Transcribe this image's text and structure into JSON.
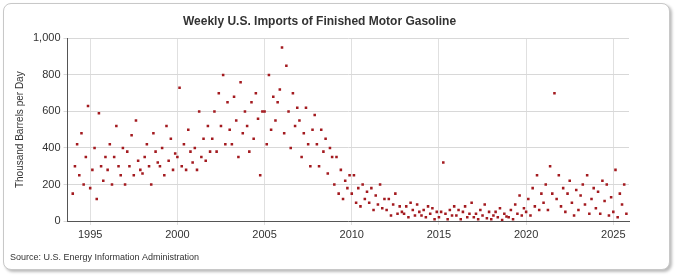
{
  "chart_data": {
    "type": "scatter",
    "title": "Weekly U.S. Imports of Finished Motor Gasoline",
    "y_label": "Thousand Barrels per Day",
    "source": "Source: U.S. Energy Information Administration",
    "color": "#a31a1f",
    "marker": "square",
    "grid": true,
    "xlim": [
      1993.7,
      2025.9
    ],
    "xticks": [
      1995,
      2000,
      2005,
      2010,
      2015,
      2020,
      2025
    ],
    "ylim": [
      0,
      1000
    ],
    "yticks": [
      0,
      200,
      400,
      600,
      800,
      {
        "value": 1000,
        "label": "1,000"
      }
    ],
    "x": [
      1994.0,
      1994.125,
      1994.25,
      1994.375,
      1994.5,
      1994.625,
      1994.75,
      1994.875,
      1995.0,
      1995.125,
      1995.25,
      1995.375,
      1995.5,
      1995.625,
      1995.75,
      1995.875,
      1996.0,
      1996.125,
      1996.25,
      1996.375,
      1996.5,
      1996.625,
      1996.75,
      1996.875,
      1997.0,
      1997.125,
      1997.25,
      1997.375,
      1997.5,
      1997.625,
      1997.75,
      1997.875,
      1998.0,
      1998.125,
      1998.25,
      1998.375,
      1998.5,
      1998.625,
      1998.75,
      1998.875,
      1999.0,
      1999.125,
      1999.25,
      1999.375,
      1999.5,
      1999.625,
      1999.75,
      1999.875,
      2000.0,
      2000.125,
      2000.25,
      2000.375,
      2000.5,
      2000.625,
      2000.75,
      2000.875,
      2001.0,
      2001.125,
      2001.25,
      2001.375,
      2001.5,
      2001.625,
      2001.75,
      2001.875,
      2002.0,
      2002.125,
      2002.25,
      2002.375,
      2002.5,
      2002.625,
      2002.75,
      2002.875,
      2003.0,
      2003.125,
      2003.25,
      2003.375,
      2003.5,
      2003.625,
      2003.75,
      2003.875,
      2004.0,
      2004.125,
      2004.25,
      2004.375,
      2004.5,
      2004.625,
      2004.75,
      2004.875,
      2005.0,
      2005.125,
      2005.25,
      2005.375,
      2005.5,
      2005.625,
      2005.75,
      2005.875,
      2006.0,
      2006.125,
      2006.25,
      2006.375,
      2006.5,
      2006.625,
      2006.75,
      2006.875,
      2007.0,
      2007.125,
      2007.25,
      2007.375,
      2007.5,
      2007.625,
      2007.75,
      2007.875,
      2008.0,
      2008.125,
      2008.25,
      2008.375,
      2008.5,
      2008.625,
      2008.75,
      2008.875,
      2009.0,
      2009.125,
      2009.25,
      2009.375,
      2009.5,
      2009.625,
      2009.75,
      2009.875,
      2010.0,
      2010.125,
      2010.25,
      2010.375,
      2010.5,
      2010.625,
      2010.75,
      2010.875,
      2011.0,
      2011.125,
      2011.25,
      2011.375,
      2011.5,
      2011.625,
      2011.75,
      2011.875,
      2012.0,
      2012.125,
      2012.25,
      2012.375,
      2012.5,
      2012.625,
      2012.75,
      2012.875,
      2013.0,
      2013.125,
      2013.25,
      2013.375,
      2013.5,
      2013.625,
      2013.75,
      2013.875,
      2014.0,
      2014.125,
      2014.25,
      2014.375,
      2014.5,
      2014.625,
      2014.75,
      2014.875,
      2015.0,
      2015.125,
      2015.25,
      2015.375,
      2015.5,
      2015.625,
      2015.75,
      2015.875,
      2016.0,
      2016.125,
      2016.25,
      2016.375,
      2016.5,
      2016.625,
      2016.75,
      2016.875,
      2017.0,
      2017.125,
      2017.25,
      2017.375,
      2017.5,
      2017.625,
      2017.75,
      2017.875,
      2018.0,
      2018.125,
      2018.25,
      2018.375,
      2018.5,
      2018.625,
      2018.75,
      2018.875,
      2019.0,
      2019.125,
      2019.25,
      2019.375,
      2019.5,
      2019.625,
      2019.75,
      2019.875,
      2020.0,
      2020.125,
      2020.25,
      2020.375,
      2020.5,
      2020.625,
      2020.75,
      2020.875,
      2021.0,
      2021.125,
      2021.25,
      2021.375,
      2021.5,
      2021.625,
      2021.75,
      2021.875,
      2022.0,
      2022.125,
      2022.25,
      2022.375,
      2022.5,
      2022.625,
      2022.75,
      2022.875,
      2023.0,
      2023.125,
      2023.25,
      2023.375,
      2023.5,
      2023.625,
      2023.75,
      2023.875,
      2024.0,
      2024.125,
      2024.25,
      2024.375,
      2024.5,
      2024.625,
      2024.75,
      2024.875,
      2025.0,
      2025.125,
      2025.25,
      2025.375,
      2025.5,
      2025.625,
      2025.75
    ],
    "values": [
      150,
      300,
      420,
      250,
      480,
      200,
      350,
      630,
      180,
      280,
      400,
      120,
      590,
      300,
      220,
      350,
      280,
      420,
      200,
      350,
      520,
      300,
      250,
      400,
      200,
      380,
      300,
      470,
      250,
      550,
      330,
      280,
      260,
      350,
      420,
      300,
      200,
      480,
      380,
      320,
      300,
      400,
      250,
      520,
      330,
      450,
      280,
      370,
      350,
      730,
      300,
      420,
      280,
      500,
      380,
      320,
      400,
      280,
      600,
      350,
      450,
      330,
      520,
      380,
      450,
      600,
      380,
      700,
      520,
      800,
      420,
      650,
      500,
      420,
      680,
      550,
      350,
      760,
      480,
      600,
      520,
      380,
      650,
      450,
      700,
      560,
      250,
      600,
      600,
      420,
      800,
      500,
      680,
      550,
      650,
      720,
      950,
      480,
      850,
      600,
      400,
      700,
      520,
      620,
      550,
      350,
      480,
      620,
      420,
      300,
      500,
      580,
      420,
      300,
      500,
      380,
      450,
      260,
      400,
      350,
      200,
      350,
      150,
      280,
      120,
      220,
      180,
      250,
      150,
      250,
      100,
      180,
      80,
      200,
      120,
      160,
      100,
      180,
      60,
      140,
      90,
      200,
      70,
      120,
      60,
      120,
      30,
      90,
      150,
      40,
      80,
      50,
      40,
      80,
      20,
      100,
      60,
      30,
      90,
      50,
      30,
      60,
      20,
      80,
      40,
      70,
      10,
      50,
      20,
      50,
      320,
      40,
      10,
      60,
      30,
      80,
      30,
      60,
      10,
      50,
      80,
      20,
      40,
      100,
      20,
      40,
      10,
      60,
      30,
      90,
      15,
      50,
      10,
      30,
      50,
      20,
      70,
      5,
      40,
      25,
      20,
      60,
      10,
      90,
      40,
      140,
      30,
      70,
      50,
      120,
      30,
      180,
      80,
      250,
      60,
      150,
      100,
      200,
      60,
      300,
      150,
      700,
      120,
      250,
      80,
      180,
      50,
      150,
      220,
      100,
      30,
      170,
      60,
      140,
      200,
      90,
      250,
      40,
      120,
      180,
      70,
      160,
      40,
      220,
      110,
      200,
      30,
      130,
      50,
      280,
      20,
      150,
      90,
      200,
      40
    ]
  }
}
